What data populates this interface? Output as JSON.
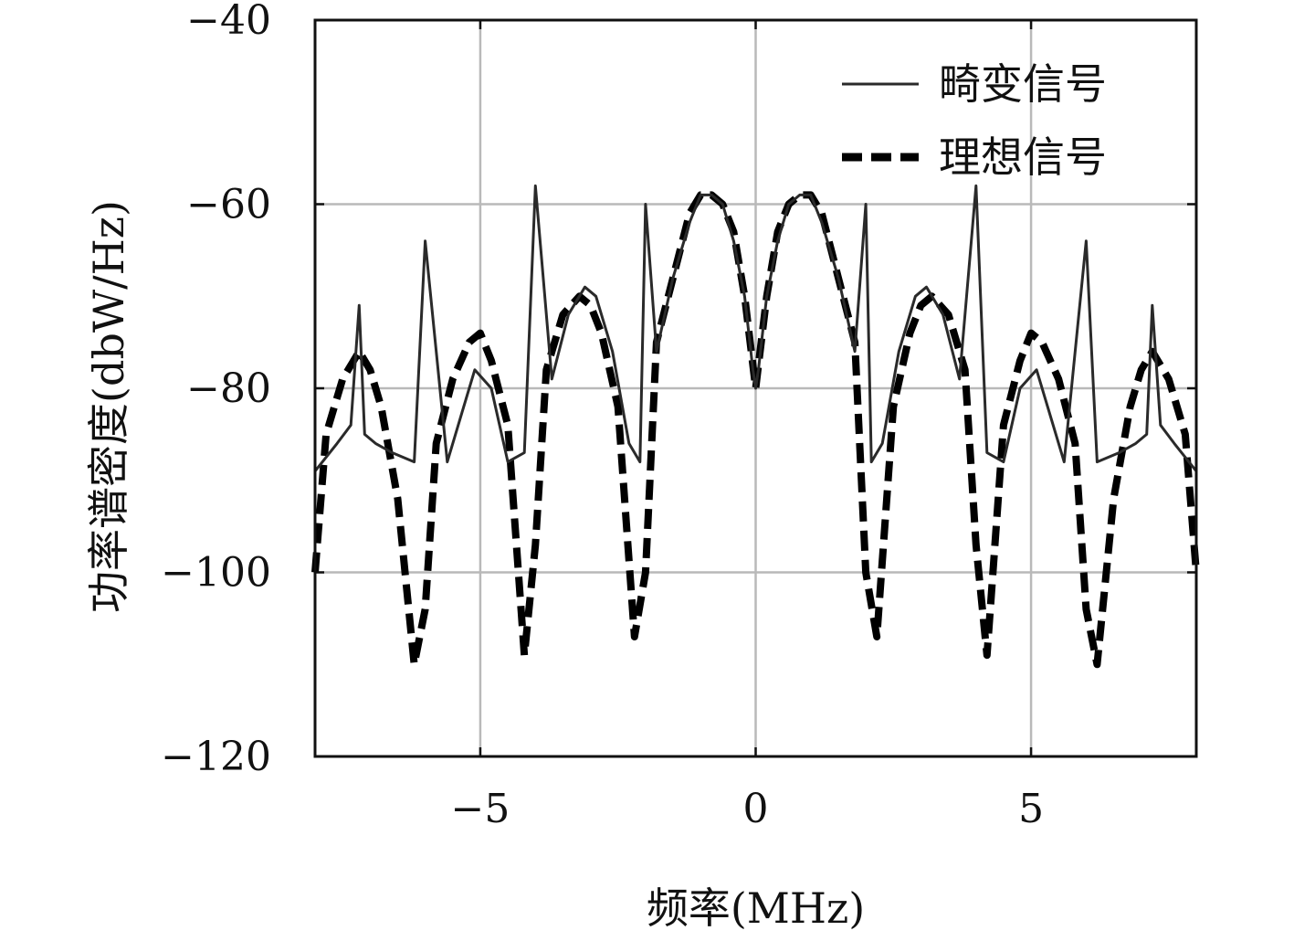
{
  "chart_data": {
    "type": "line",
    "xlabel": "频率(MHz)",
    "ylabel": "功率谱密度(dbW/Hz)",
    "xlim": [
      -8,
      8
    ],
    "ylim": [
      -120,
      -40
    ],
    "xticks": [
      -5,
      0,
      5
    ],
    "yticks": [
      -40,
      -60,
      -80,
      -100,
      -120
    ],
    "xtick_labels": [
      "−5",
      "0",
      "5"
    ],
    "ytick_labels": [
      "−40",
      "−60",
      "−80",
      "−100",
      "−120"
    ],
    "grid": true,
    "legend_position": "top-right",
    "series": [
      {
        "name": "畸变信号",
        "style": "solid",
        "color": "#2a2a2a",
        "x": [
          -8.0,
          -7.6,
          -7.35,
          -7.2,
          -7.1,
          -6.9,
          -6.6,
          -6.2,
          -6.0,
          -5.6,
          -5.3,
          -5.1,
          -4.8,
          -4.5,
          -4.2,
          -4.0,
          -3.7,
          -3.4,
          -3.1,
          -2.9,
          -2.6,
          -2.3,
          -2.1,
          -2.0,
          -1.8,
          -1.5,
          -1.2,
          -1.0,
          -0.8,
          -0.6,
          -0.4,
          -0.2,
          -0.05,
          0.0,
          0.05,
          0.2,
          0.4,
          0.6,
          0.8,
          1.0,
          1.2,
          1.5,
          1.8,
          2.0,
          2.1,
          2.3,
          2.6,
          2.9,
          3.1,
          3.4,
          3.7,
          4.0,
          4.2,
          4.5,
          4.8,
          5.1,
          5.3,
          5.6,
          6.0,
          6.2,
          6.6,
          6.9,
          7.1,
          7.2,
          7.35,
          7.6,
          8.0
        ],
        "y": [
          -89,
          -86,
          -84,
          -71,
          -85,
          -86,
          -87,
          -88,
          -64,
          -88,
          -82,
          -78,
          -80,
          -88,
          -87,
          -58,
          -79,
          -72,
          -69,
          -70,
          -76,
          -86,
          -88,
          -60,
          -76,
          -68,
          -62,
          -59,
          -59,
          -60,
          -64,
          -70,
          -78,
          -80,
          -78,
          -70,
          -64,
          -60,
          -59,
          -59,
          -62,
          -68,
          -76,
          -60,
          -88,
          -86,
          -76,
          -70,
          -69,
          -72,
          -79,
          -58,
          -87,
          -88,
          -80,
          -78,
          -82,
          -88,
          -64,
          -88,
          -87,
          -86,
          -85,
          -71,
          -84,
          -86,
          -89
        ]
      },
      {
        "name": "理想信号",
        "style": "dashed",
        "color": "#000000",
        "x": [
          -8.0,
          -7.8,
          -7.5,
          -7.2,
          -7.0,
          -6.8,
          -6.5,
          -6.2,
          -6.0,
          -5.8,
          -5.5,
          -5.2,
          -5.0,
          -4.8,
          -4.5,
          -4.2,
          -4.0,
          -3.8,
          -3.5,
          -3.2,
          -3.0,
          -2.8,
          -2.5,
          -2.2,
          -2.0,
          -1.8,
          -1.5,
          -1.2,
          -1.0,
          -0.8,
          -0.6,
          -0.4,
          -0.2,
          0.0,
          0.2,
          0.4,
          0.6,
          0.8,
          1.0,
          1.2,
          1.5,
          1.8,
          2.0,
          2.2,
          2.5,
          2.8,
          3.0,
          3.2,
          3.5,
          3.8,
          4.0,
          4.2,
          4.5,
          4.8,
          5.0,
          5.2,
          5.5,
          5.8,
          6.0,
          6.2,
          6.5,
          6.8,
          7.0,
          7.2,
          7.5,
          7.8,
          8.0
        ],
        "y": [
          -100,
          -85,
          -79,
          -76,
          -78,
          -82,
          -92,
          -110,
          -104,
          -86,
          -79,
          -75,
          -74,
          -77,
          -84,
          -109,
          -97,
          -78,
          -72,
          -70,
          -71,
          -74,
          -82,
          -107,
          -100,
          -75,
          -68,
          -61,
          -59,
          -59,
          -60,
          -63,
          -70,
          -80,
          -70,
          -63,
          -60,
          -59,
          -59,
          -61,
          -68,
          -75,
          -100,
          -107,
          -82,
          -74,
          -71,
          -70,
          -72,
          -78,
          -97,
          -109,
          -84,
          -77,
          -74,
          -75,
          -79,
          -86,
          -104,
          -110,
          -92,
          -82,
          -78,
          -76,
          -79,
          -85,
          -100
        ]
      }
    ]
  }
}
